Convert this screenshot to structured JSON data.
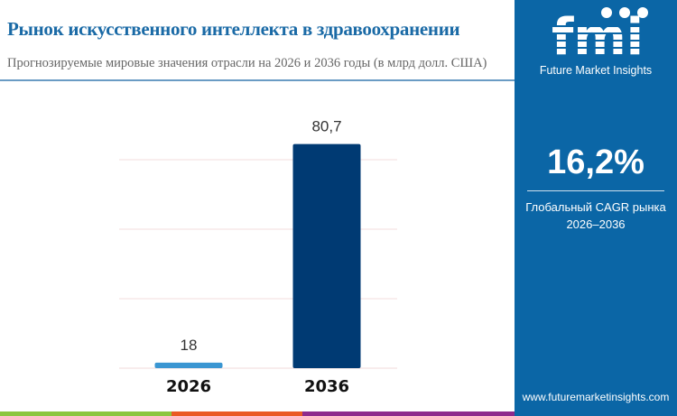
{
  "header": {
    "title": "Рынок искусственного интеллекта в здравоохранении",
    "subtitle": "Прогнозируемые мировые значения отрасли на 2026 и 2036 годы (в млрд долл. США)"
  },
  "panel": {
    "logo_text": "Future Market Insights",
    "cagr_value": "16,2%",
    "cagr_label_line1": "Глобальный CAGR рынка",
    "cagr_label_line2": "2026–2036",
    "url": "www.futuremarketinsights.com",
    "background": "#0b66a6"
  },
  "chart_data": {
    "type": "bar",
    "categories": [
      "2026",
      "2036"
    ],
    "values": [
      18,
      80.7
    ],
    "value_labels": [
      "18",
      "80,7"
    ],
    "colors": [
      "#3a96d2",
      "#003a73"
    ],
    "ylim": [
      16.4,
      85
    ],
    "grid": true,
    "title": "",
    "xlabel": "",
    "ylabel": ""
  },
  "stripes": [
    "#8cc63f",
    "#ea5a24",
    "#8e2a8c"
  ]
}
